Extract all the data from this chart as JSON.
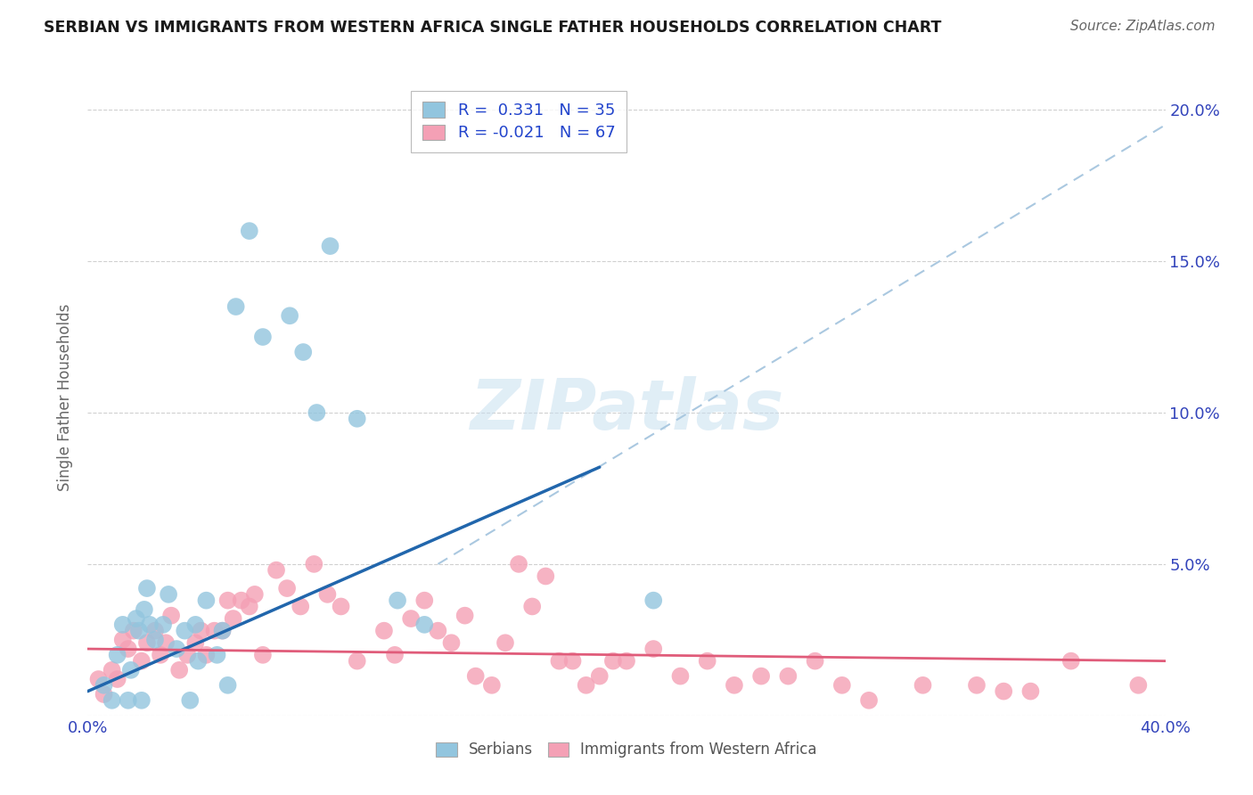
{
  "title": "SERBIAN VS IMMIGRANTS FROM WESTERN AFRICA SINGLE FATHER HOUSEHOLDS CORRELATION CHART",
  "source": "Source: ZipAtlas.com",
  "ylabel": "Single Father Households",
  "xlim": [
    0.0,
    0.4
  ],
  "ylim": [
    0.0,
    0.21
  ],
  "x_ticks": [
    0.0,
    0.1,
    0.2,
    0.3,
    0.4
  ],
  "x_tick_labels": [
    "0.0%",
    "",
    "",
    "",
    "40.0%"
  ],
  "y_ticks": [
    0.0,
    0.05,
    0.1,
    0.15,
    0.2
  ],
  "y_tick_labels_left": [
    "",
    "",
    "",
    "",
    ""
  ],
  "y_tick_labels_right": [
    "",
    "5.0%",
    "10.0%",
    "15.0%",
    "20.0%"
  ],
  "serbian_R": 0.331,
  "serbian_N": 35,
  "wa_R": -0.021,
  "wa_N": 67,
  "serbian_color": "#92c5de",
  "wa_color": "#f4a0b5",
  "serbian_line_color": "#2166ac",
  "wa_line_color": "#e05c7a",
  "dash_line_color": "#aac8e0",
  "background_color": "#ffffff",
  "watermark": "ZIPatlas",
  "grid_color": "#d0d0d0",
  "serbian_points_x": [
    0.006,
    0.009,
    0.011,
    0.013,
    0.016,
    0.018,
    0.019,
    0.021,
    0.023,
    0.025,
    0.028,
    0.03,
    0.033,
    0.036,
    0.04,
    0.041,
    0.044,
    0.048,
    0.05,
    0.052,
    0.022,
    0.06,
    0.065,
    0.075,
    0.08,
    0.085,
    0.09,
    0.1,
    0.115,
    0.125,
    0.015,
    0.02,
    0.038,
    0.055,
    0.21
  ],
  "serbian_points_y": [
    0.01,
    0.005,
    0.02,
    0.03,
    0.015,
    0.032,
    0.028,
    0.035,
    0.03,
    0.025,
    0.03,
    0.04,
    0.022,
    0.028,
    0.03,
    0.018,
    0.038,
    0.02,
    0.028,
    0.01,
    0.042,
    0.16,
    0.125,
    0.132,
    0.12,
    0.1,
    0.155,
    0.098,
    0.038,
    0.03,
    0.005,
    0.005,
    0.005,
    0.135,
    0.038
  ],
  "wa_points_x": [
    0.004,
    0.006,
    0.009,
    0.011,
    0.013,
    0.015,
    0.017,
    0.02,
    0.022,
    0.025,
    0.027,
    0.029,
    0.031,
    0.034,
    0.037,
    0.04,
    0.042,
    0.044,
    0.047,
    0.05,
    0.052,
    0.054,
    0.057,
    0.06,
    0.062,
    0.065,
    0.07,
    0.074,
    0.079,
    0.084,
    0.089,
    0.094,
    0.1,
    0.11,
    0.114,
    0.12,
    0.125,
    0.13,
    0.135,
    0.14,
    0.144,
    0.15,
    0.155,
    0.16,
    0.165,
    0.17,
    0.175,
    0.18,
    0.185,
    0.19,
    0.195,
    0.2,
    0.21,
    0.22,
    0.23,
    0.24,
    0.25,
    0.26,
    0.27,
    0.28,
    0.29,
    0.31,
    0.33,
    0.35,
    0.365,
    0.34,
    0.39
  ],
  "wa_points_y": [
    0.012,
    0.007,
    0.015,
    0.012,
    0.025,
    0.022,
    0.028,
    0.018,
    0.024,
    0.028,
    0.02,
    0.024,
    0.033,
    0.015,
    0.02,
    0.024,
    0.028,
    0.02,
    0.028,
    0.028,
    0.038,
    0.032,
    0.038,
    0.036,
    0.04,
    0.02,
    0.048,
    0.042,
    0.036,
    0.05,
    0.04,
    0.036,
    0.018,
    0.028,
    0.02,
    0.032,
    0.038,
    0.028,
    0.024,
    0.033,
    0.013,
    0.01,
    0.024,
    0.05,
    0.036,
    0.046,
    0.018,
    0.018,
    0.01,
    0.013,
    0.018,
    0.018,
    0.022,
    0.013,
    0.018,
    0.01,
    0.013,
    0.013,
    0.018,
    0.01,
    0.005,
    0.01,
    0.01,
    0.008,
    0.018,
    0.008,
    0.01
  ],
  "serbian_line_x": [
    0.0,
    0.19
  ],
  "serbian_line_y": [
    0.008,
    0.082
  ],
  "wa_line_x": [
    0.0,
    0.4
  ],
  "wa_line_y": [
    0.022,
    0.018
  ],
  "dash_line_x": [
    0.13,
    0.4
  ],
  "dash_line_y": [
    0.05,
    0.195
  ]
}
